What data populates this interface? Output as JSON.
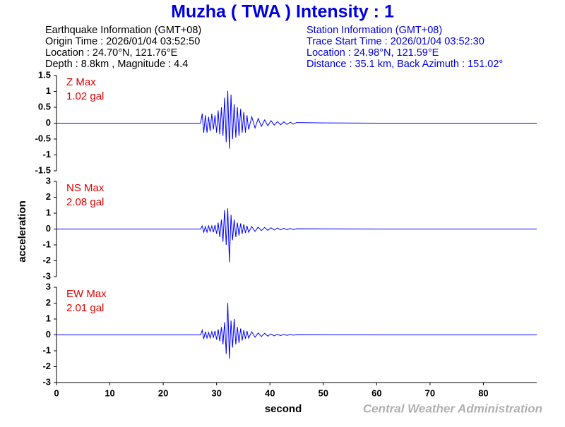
{
  "title": "Muzha ( TWA ) Intensity : 1",
  "earthquake_info": [
    "Earthquake Information  (GMT+08)",
    "Origin Time : 2026/01/04 03:52:50",
    "Location : 24.70°N, 121.76°E",
    "Depth : 8.8km , Magnitude : 4.4"
  ],
  "station_info": [
    "Station Information  (GMT+08)",
    "Trace Start Time : 2026/01/04 03:52:30",
    "Location : 24.98°N, 121.59°E",
    "Distance : 35.1 km, Back Azimuth : 151.02°"
  ],
  "ylabel": "acceleration",
  "footer": "Central Weather Administration",
  "chart_data": [
    {
      "type": "line",
      "annotations": [
        "Z Max",
        "1.02 gal"
      ],
      "x": [
        0,
        27.0,
        27.3,
        27.6,
        27.9,
        28.2,
        28.5,
        28.8,
        29.1,
        29.4,
        29.7,
        30.0,
        30.3,
        30.6,
        30.9,
        31.2,
        31.5,
        31.8,
        32.1,
        32.4,
        32.7,
        33.0,
        33.3,
        33.6,
        33.9,
        34.2,
        34.5,
        34.8,
        35.1,
        35.4,
        35.7,
        36.0,
        36.6,
        37.2,
        37.8,
        38.4,
        39.0,
        39.6,
        40.2,
        40.8,
        41.4,
        42.0,
        42.6,
        43.2,
        43.8,
        44.4,
        45.0,
        50,
        60,
        90
      ],
      "series": [
        {
          "color": "#0000ff",
          "values": [
            0,
            0,
            0.3,
            -0.3,
            0.25,
            -0.3,
            0.2,
            -0.25,
            0.3,
            -0.2,
            0.25,
            -0.3,
            0.4,
            -0.35,
            0.5,
            -0.4,
            0.8,
            -0.6,
            1.02,
            -0.8,
            0.9,
            -0.5,
            0.6,
            -0.45,
            0.5,
            -0.4,
            0.45,
            -0.3,
            0.35,
            -0.3,
            0.25,
            -0.2,
            0.2,
            -0.15,
            0.15,
            -0.1,
            0.1,
            -0.08,
            0.08,
            -0.06,
            0.05,
            -0.05,
            0.04,
            -0.04,
            0.03,
            -0.03,
            0.02,
            0.01,
            0,
            0
          ]
        }
      ],
      "xlim": [
        0,
        90
      ],
      "ylim": [
        -1.5,
        1.5
      ],
      "yticks": [
        1.5,
        1,
        0.5,
        0,
        -0.5,
        -1,
        -1.5
      ]
    },
    {
      "type": "line",
      "annotations": [
        "NS Max",
        "2.08 gal"
      ],
      "x": [
        0,
        27.0,
        27.3,
        27.6,
        27.9,
        28.2,
        28.5,
        28.8,
        29.1,
        29.4,
        29.7,
        30.0,
        30.3,
        30.6,
        30.9,
        31.2,
        31.5,
        31.8,
        32.1,
        32.4,
        32.7,
        33.0,
        33.3,
        33.6,
        33.9,
        34.2,
        34.5,
        34.8,
        35.1,
        35.4,
        35.7,
        36.0,
        36.6,
        37.2,
        37.8,
        38.4,
        39.0,
        39.6,
        40.2,
        40.8,
        41.4,
        42.0,
        42.6,
        43.2,
        43.8,
        44.4,
        45.0,
        50,
        60,
        90
      ],
      "series": [
        {
          "color": "#0000ff",
          "values": [
            0,
            0,
            0.2,
            -0.2,
            0.15,
            -0.2,
            0.2,
            -0.15,
            0.2,
            -0.2,
            0.25,
            -0.3,
            0.4,
            -0.5,
            0.6,
            -0.8,
            1.2,
            -1.0,
            1.3,
            -2.08,
            0.9,
            -0.7,
            0.6,
            -0.5,
            0.4,
            -0.4,
            0.35,
            -0.3,
            0.3,
            -0.25,
            0.2,
            -0.2,
            0.15,
            -0.15,
            0.12,
            -0.1,
            0.1,
            -0.08,
            0.08,
            -0.06,
            0.06,
            -0.05,
            0.05,
            -0.04,
            0.03,
            -0.03,
            0.02,
            0.01,
            0,
            0
          ]
        }
      ],
      "xlim": [
        0,
        90
      ],
      "ylim": [
        -3,
        3
      ],
      "yticks": [
        3,
        2,
        1,
        0,
        -1,
        -2,
        -3
      ]
    },
    {
      "type": "line",
      "annotations": [
        "EW Max",
        "2.01 gal"
      ],
      "x": [
        0,
        27.0,
        27.3,
        27.6,
        27.9,
        28.2,
        28.5,
        28.8,
        29.1,
        29.4,
        29.7,
        30.0,
        30.3,
        30.6,
        30.9,
        31.2,
        31.5,
        31.8,
        32.1,
        32.4,
        32.7,
        33.0,
        33.3,
        33.6,
        33.9,
        34.2,
        34.5,
        34.8,
        35.1,
        35.4,
        35.7,
        36.0,
        36.6,
        37.2,
        37.8,
        38.4,
        39.0,
        39.6,
        40.2,
        40.8,
        41.4,
        42.0,
        42.6,
        43.2,
        43.8,
        44.4,
        45.0,
        50,
        60,
        90
      ],
      "series": [
        {
          "color": "#0000ff",
          "values": [
            0,
            0,
            0.3,
            -0.25,
            0.2,
            -0.2,
            0.15,
            -0.2,
            0.2,
            -0.15,
            0.25,
            -0.3,
            0.35,
            -0.4,
            0.5,
            -0.6,
            0.8,
            -1.2,
            2.01,
            -1.5,
            0.9,
            -0.8,
            1.0,
            -0.6,
            0.5,
            -0.5,
            0.4,
            -0.35,
            0.3,
            -0.25,
            0.25,
            -0.2,
            0.2,
            -0.15,
            0.12,
            -0.1,
            0.1,
            -0.08,
            0.06,
            -0.06,
            0.05,
            -0.05,
            0.04,
            -0.03,
            0.03,
            -0.02,
            0.02,
            0.01,
            0,
            0
          ]
        }
      ],
      "xlim": [
        0,
        90
      ],
      "ylim": [
        -3,
        3
      ],
      "yticks": [
        3,
        2,
        1,
        0,
        -1,
        -2,
        -3
      ],
      "xticks": [
        0,
        10,
        20,
        30,
        40,
        50,
        60,
        70,
        80
      ],
      "xlabel": "second"
    }
  ]
}
